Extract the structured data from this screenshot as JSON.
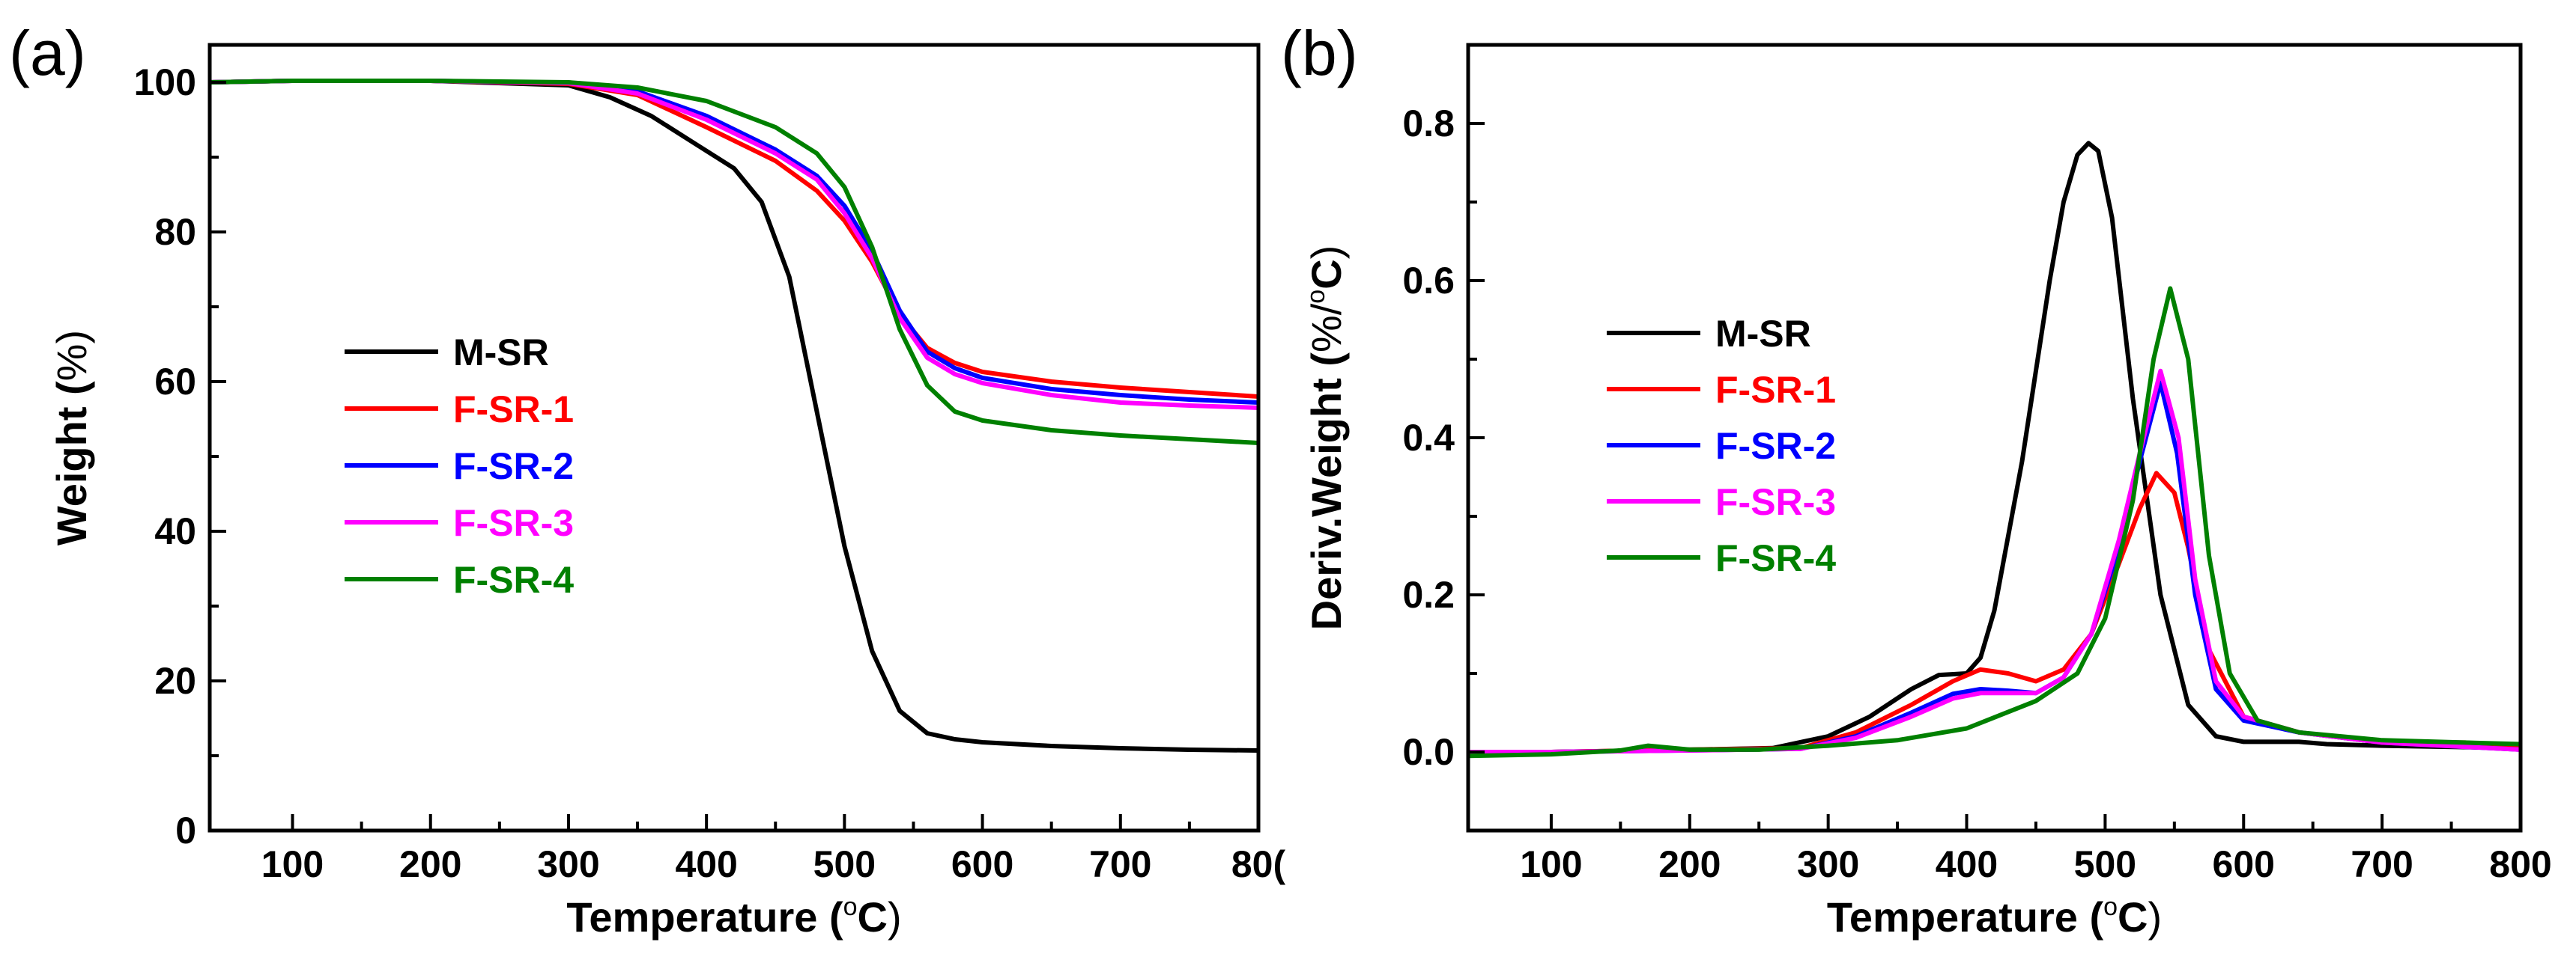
{
  "chart_data": [
    {
      "panel_label": "(a)",
      "type": "line",
      "xlabel": "Temperature (",
      "xlabel_unit": "oC",
      "xlabel_close": ")",
      "ylabel": "Weight (",
      "ylabel_unit": "%",
      "ylabel_close": ")",
      "xlim": [
        40,
        800
      ],
      "ylim": [
        0,
        105
      ],
      "xticks": [
        100,
        200,
        300,
        400,
        500,
        600,
        700
      ],
      "xtick_last": "80(",
      "yticks": [
        0,
        20,
        40,
        60,
        80,
        100
      ],
      "legend_position": "center-left",
      "series": [
        {
          "name": "M-SR",
          "color": "#000000",
          "x": [
            40,
            100,
            200,
            300,
            330,
            360,
            390,
            420,
            440,
            460,
            480,
            500,
            520,
            540,
            560,
            580,
            600,
            650,
            700,
            750,
            800
          ],
          "y": [
            100,
            100.2,
            100.2,
            99.6,
            98,
            95.5,
            92,
            88.5,
            84,
            74,
            56,
            38,
            24,
            16,
            13,
            12.2,
            11.8,
            11.3,
            11,
            10.8,
            10.7
          ]
        },
        {
          "name": "F-SR-1",
          "color": "#ff0000",
          "x": [
            40,
            100,
            200,
            300,
            350,
            400,
            450,
            480,
            500,
            520,
            540,
            560,
            580,
            600,
            650,
            700,
            750,
            800
          ],
          "y": [
            100,
            100.2,
            100.2,
            99.8,
            98.3,
            94,
            89.5,
            85.5,
            81.5,
            76,
            69,
            64.5,
            62.5,
            61.3,
            60,
            59.2,
            58.6,
            58
          ]
        },
        {
          "name": "F-SR-2",
          "color": "#0000ff",
          "x": [
            40,
            100,
            200,
            300,
            350,
            400,
            450,
            480,
            500,
            520,
            540,
            560,
            580,
            600,
            650,
            700,
            750,
            800
          ],
          "y": [
            100,
            100.2,
            100.2,
            99.9,
            98.8,
            95.5,
            91,
            87.5,
            83.5,
            77.5,
            69.5,
            64,
            61.8,
            60.5,
            59,
            58.2,
            57.6,
            57.2
          ]
        },
        {
          "name": "F-SR-3",
          "color": "#ff00ff",
          "x": [
            40,
            100,
            200,
            300,
            350,
            400,
            450,
            480,
            500,
            520,
            540,
            560,
            580,
            600,
            650,
            700,
            750,
            800
          ],
          "y": [
            100,
            100.2,
            100.2,
            99.9,
            98.5,
            95,
            90.5,
            87,
            82.5,
            76.5,
            68.5,
            63.2,
            61,
            59.8,
            58.2,
            57.2,
            56.8,
            56.5
          ]
        },
        {
          "name": "F-SR-4",
          "color": "#008000",
          "x": [
            40,
            100,
            200,
            300,
            350,
            400,
            450,
            480,
            500,
            520,
            540,
            560,
            580,
            600,
            650,
            700,
            750,
            800
          ],
          "y": [
            100,
            100.2,
            100.2,
            100,
            99.3,
            97.5,
            94,
            90.5,
            86,
            78,
            67,
            59.5,
            56,
            54.8,
            53.5,
            52.8,
            52.3,
            51.8
          ]
        }
      ]
    },
    {
      "panel_label": "(b)",
      "type": "line",
      "xlabel": "Temperature (",
      "xlabel_unit": "oC",
      "xlabel_close": ")",
      "ylabel": "Deriv.Weight (",
      "ylabel_unit": "%/",
      "ylabel_unit2": "oC",
      "ylabel_close": ")",
      "xlim": [
        40,
        800
      ],
      "ylim": [
        -0.1,
        0.9
      ],
      "xticks": [
        100,
        200,
        300,
        400,
        500,
        600,
        700,
        800
      ],
      "yticks": [
        0.0,
        0.2,
        0.4,
        0.6,
        0.8
      ],
      "ytick_labels": [
        "0.0",
        "0.2",
        "0.4",
        "0.6",
        "0.8"
      ],
      "legend_position": "center-left",
      "series": [
        {
          "name": "M-SR",
          "color": "#000000",
          "x": [
            40,
            100,
            200,
            260,
            300,
            330,
            360,
            380,
            400,
            410,
            420,
            440,
            460,
            470,
            480,
            488,
            495,
            505,
            520,
            540,
            560,
            580,
            600,
            640,
            660,
            700,
            800
          ],
          "y": [
            0.0,
            0.0,
            0.003,
            0.005,
            0.02,
            0.045,
            0.08,
            0.098,
            0.1,
            0.12,
            0.18,
            0.37,
            0.6,
            0.7,
            0.76,
            0.775,
            0.765,
            0.68,
            0.45,
            0.2,
            0.06,
            0.02,
            0.013,
            0.013,
            0.01,
            0.008,
            0.005
          ]
        },
        {
          "name": "F-SR-1",
          "color": "#ff0000",
          "x": [
            40,
            100,
            200,
            280,
            320,
            360,
            390,
            410,
            430,
            450,
            470,
            490,
            510,
            525,
            537,
            550,
            560,
            575,
            600,
            640,
            700,
            760,
            800
          ],
          "y": [
            0.0,
            0.0,
            0.003,
            0.005,
            0.025,
            0.06,
            0.09,
            0.105,
            0.1,
            0.09,
            0.105,
            0.15,
            0.24,
            0.31,
            0.355,
            0.33,
            0.26,
            0.13,
            0.045,
            0.025,
            0.012,
            0.012,
            0.006
          ]
        },
        {
          "name": "F-SR-2",
          "color": "#0000ff",
          "x": [
            40,
            100,
            200,
            280,
            320,
            360,
            390,
            410,
            430,
            450,
            470,
            490,
            510,
            525,
            540,
            552,
            565,
            580,
            600,
            640,
            700,
            800
          ],
          "y": [
            0.0,
            0.0,
            0.002,
            0.004,
            0.02,
            0.05,
            0.074,
            0.08,
            0.078,
            0.075,
            0.095,
            0.15,
            0.26,
            0.37,
            0.47,
            0.38,
            0.2,
            0.08,
            0.04,
            0.025,
            0.012,
            0.003
          ]
        },
        {
          "name": "F-SR-3",
          "color": "#ff00ff",
          "x": [
            40,
            100,
            200,
            280,
            320,
            360,
            390,
            410,
            430,
            450,
            470,
            490,
            510,
            525,
            540,
            553,
            565,
            580,
            600,
            640,
            700,
            800
          ],
          "y": [
            0.0,
            0.0,
            0.002,
            0.004,
            0.018,
            0.045,
            0.068,
            0.075,
            0.075,
            0.075,
            0.095,
            0.15,
            0.27,
            0.38,
            0.485,
            0.4,
            0.22,
            0.09,
            0.045,
            0.025,
            0.012,
            0.003
          ]
        },
        {
          "name": "F-SR-4",
          "color": "#008000",
          "x": [
            40,
            100,
            150,
            170,
            200,
            250,
            300,
            350,
            400,
            450,
            480,
            500,
            520,
            535,
            547,
            560,
            575,
            590,
            610,
            640,
            700,
            800
          ],
          "y": [
            -0.005,
            -0.003,
            0.002,
            0.008,
            0.003,
            0.003,
            0.008,
            0.015,
            0.03,
            0.065,
            0.1,
            0.17,
            0.32,
            0.5,
            0.59,
            0.5,
            0.25,
            0.1,
            0.04,
            0.025,
            0.015,
            0.01
          ]
        }
      ]
    }
  ]
}
